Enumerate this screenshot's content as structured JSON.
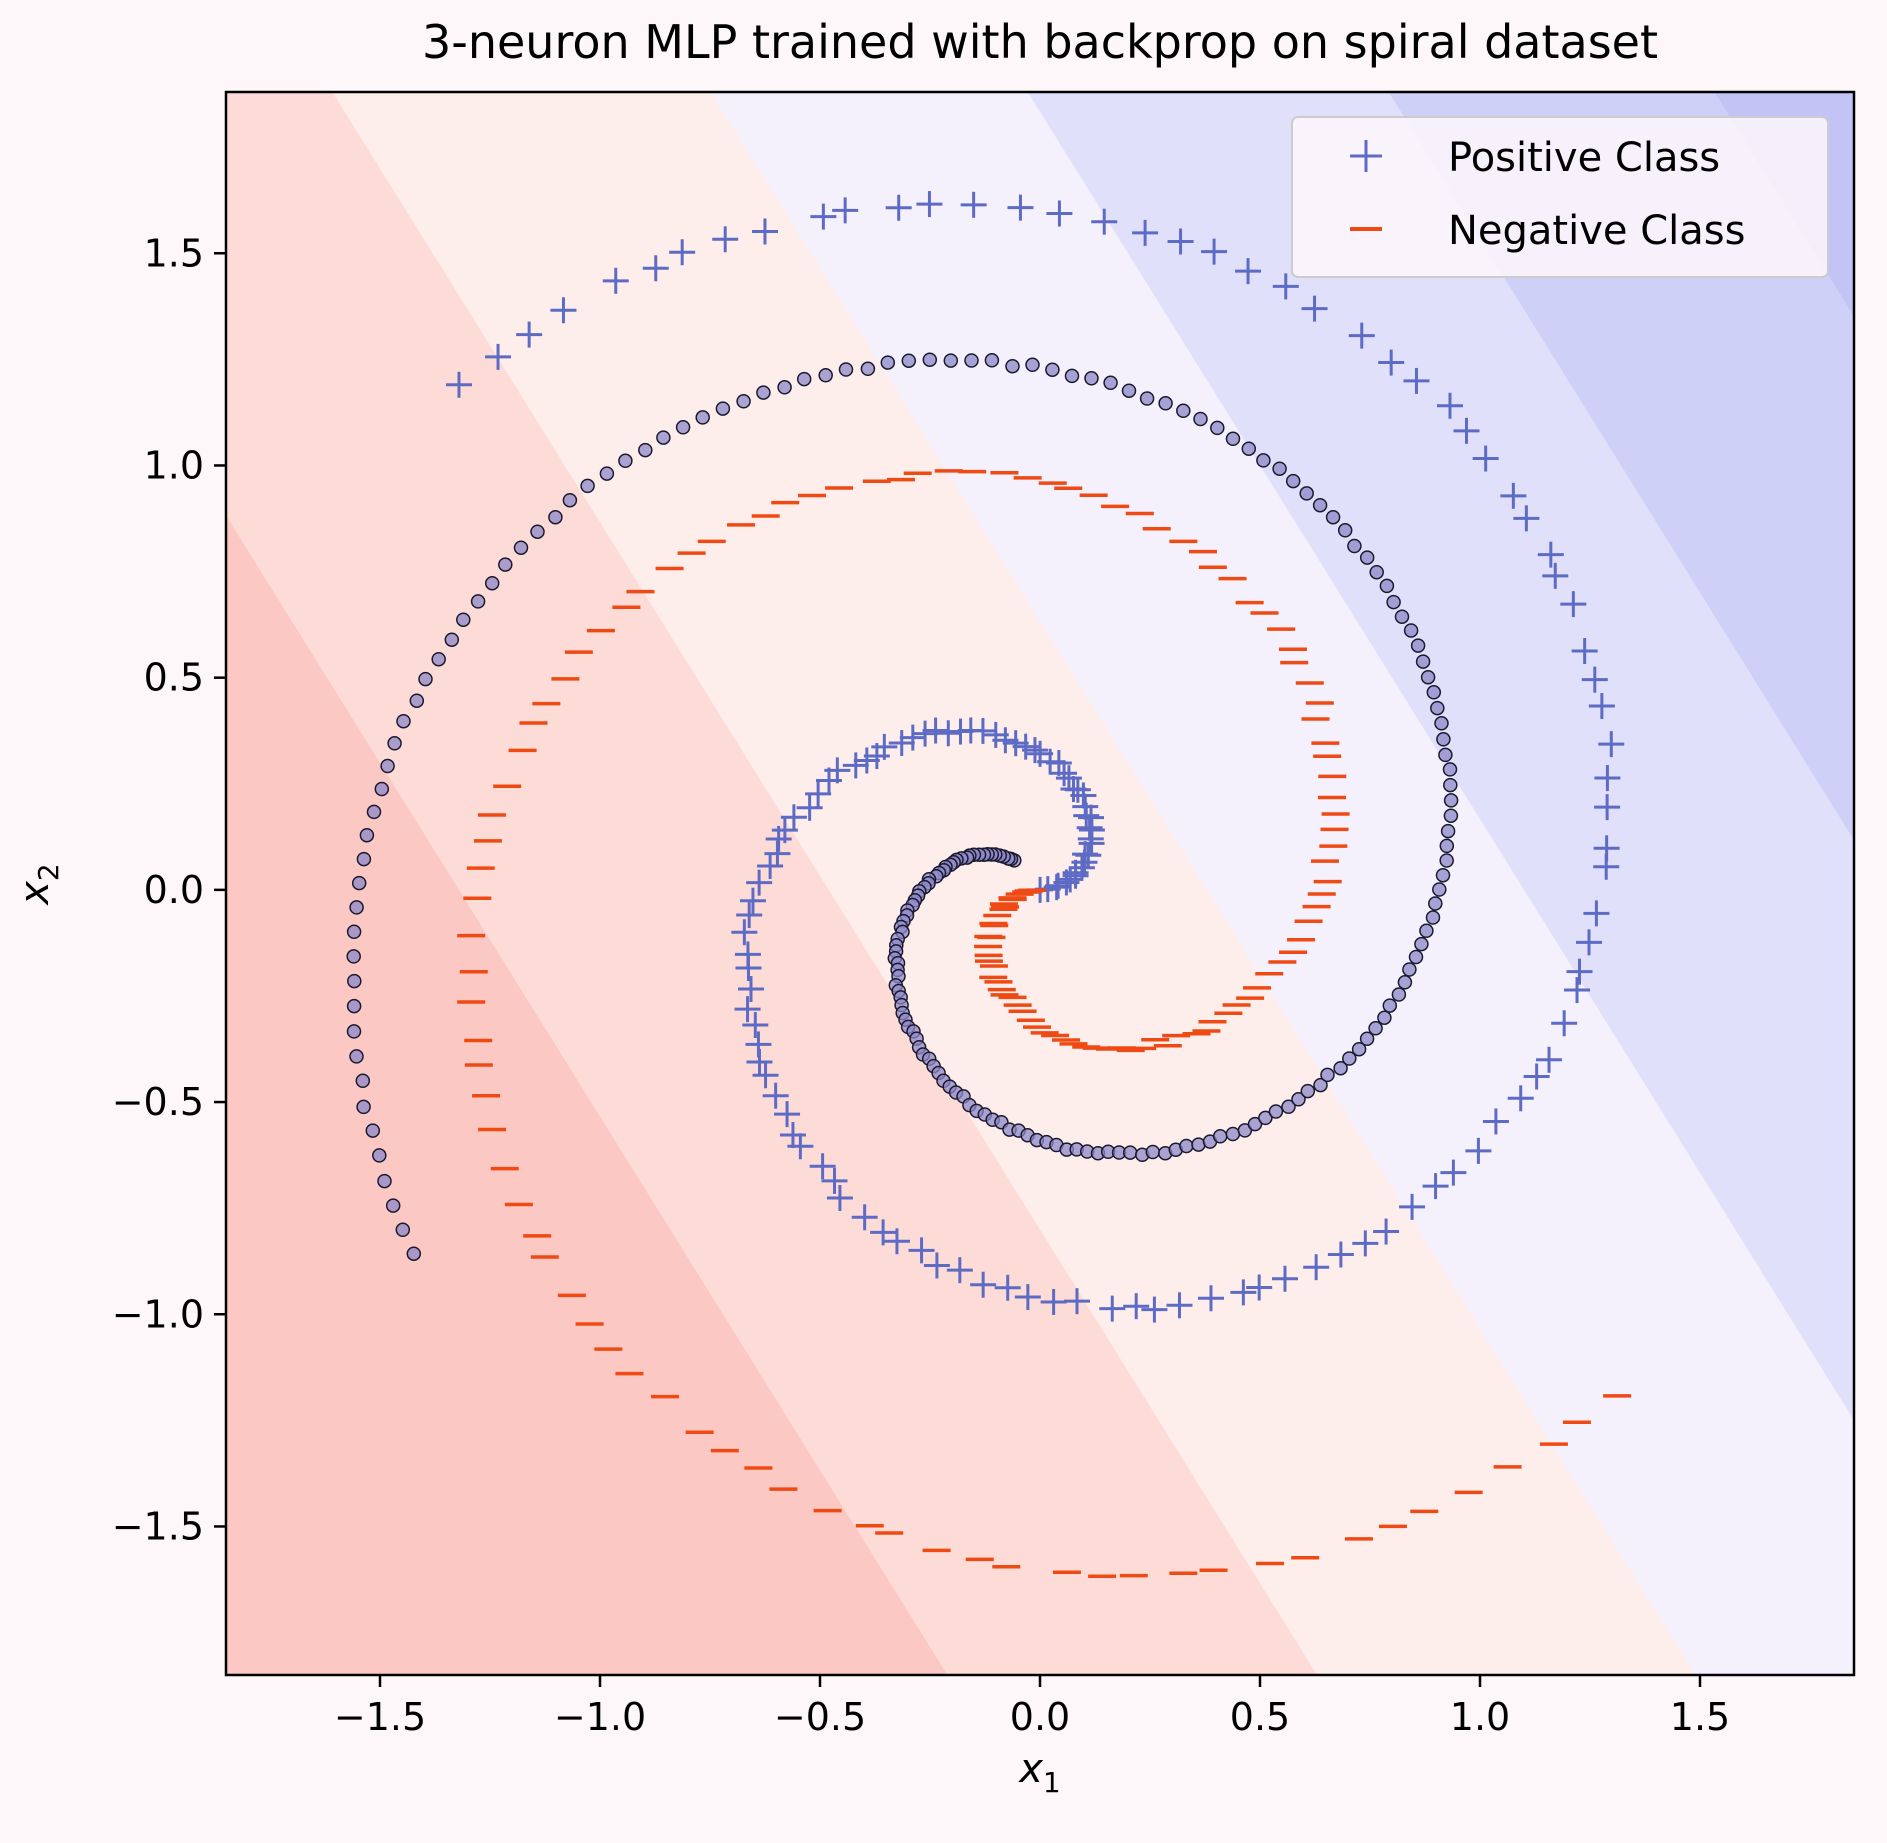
{
  "chart_data": {
    "type": "scatter",
    "title": "3-neuron MLP trained with backprop on spiral dataset",
    "xlabel": {
      "base": "x",
      "sub": "1"
    },
    "ylabel": {
      "base": "x",
      "sub": "2"
    },
    "xlim": [
      -1.85,
      1.85
    ],
    "ylim": [
      -1.85,
      1.88
    ],
    "xticks": [
      {
        "value": -1.5,
        "label": "−1.5"
      },
      {
        "value": -1.0,
        "label": "−1.0"
      },
      {
        "value": -0.5,
        "label": "−0.5"
      },
      {
        "value": 0.0,
        "label": "0.0"
      },
      {
        "value": 0.5,
        "label": "0.5"
      },
      {
        "value": 1.0,
        "label": "1.0"
      },
      {
        "value": 1.5,
        "label": "1.5"
      }
    ],
    "yticks": [
      {
        "value": 1.5,
        "label": "1.5"
      },
      {
        "value": 1.0,
        "label": "1.0"
      },
      {
        "value": 0.5,
        "label": "0.5"
      },
      {
        "value": 0.0,
        "label": "0.0"
      },
      {
        "value": -0.5,
        "label": "−0.5"
      },
      {
        "value": -1.0,
        "label": "−1.0"
      },
      {
        "value": -1.5,
        "label": "−1.5"
      }
    ],
    "grid": false,
    "legend": {
      "placement": "top-right",
      "entries": [
        {
          "label": "Positive Class",
          "marker": "+",
          "color": "#5d6bc4"
        },
        {
          "label": "Negative Class",
          "marker": "_",
          "color": "#f04a14"
        }
      ]
    },
    "decision_regions": {
      "boundary_direction": [
        1,
        0.6
      ],
      "bands": [
        {
          "upper_offset": -1.32,
          "color": "#fcc8c4"
        },
        {
          "upper_offset": -0.48,
          "color": "#fddcd8"
        },
        {
          "upper_offset": 0.38,
          "color": "#fdeeec"
        },
        {
          "upper_offset": 1.1,
          "color": "#f4f0fc"
        },
        {
          "upper_offset": 1.92,
          "color": "#e0e0fb"
        },
        {
          "upper_offset": 2.66,
          "color": "#cfd0f8"
        },
        {
          "upper_offset": 99,
          "color": "#c3c4f5"
        }
      ]
    },
    "series": [
      {
        "name": "Positive Class",
        "marker": "+",
        "color": "#5d6bc4",
        "spiral": {
          "radius_slope": 0.64,
          "start_angle": 0.0,
          "span": 2.75,
          "count": 150
        }
      },
      {
        "name": "Negative Class",
        "marker": "_",
        "color": "#f04a14",
        "spiral": {
          "radius_slope": 0.64,
          "start_angle": 3.14159,
          "span": 2.75,
          "count": 150
        }
      }
    ],
    "misclassified_overlay": {
      "marker": "o",
      "fill": "#8e88c8",
      "edge": "#1a1a2e",
      "count": 210
    }
  }
}
